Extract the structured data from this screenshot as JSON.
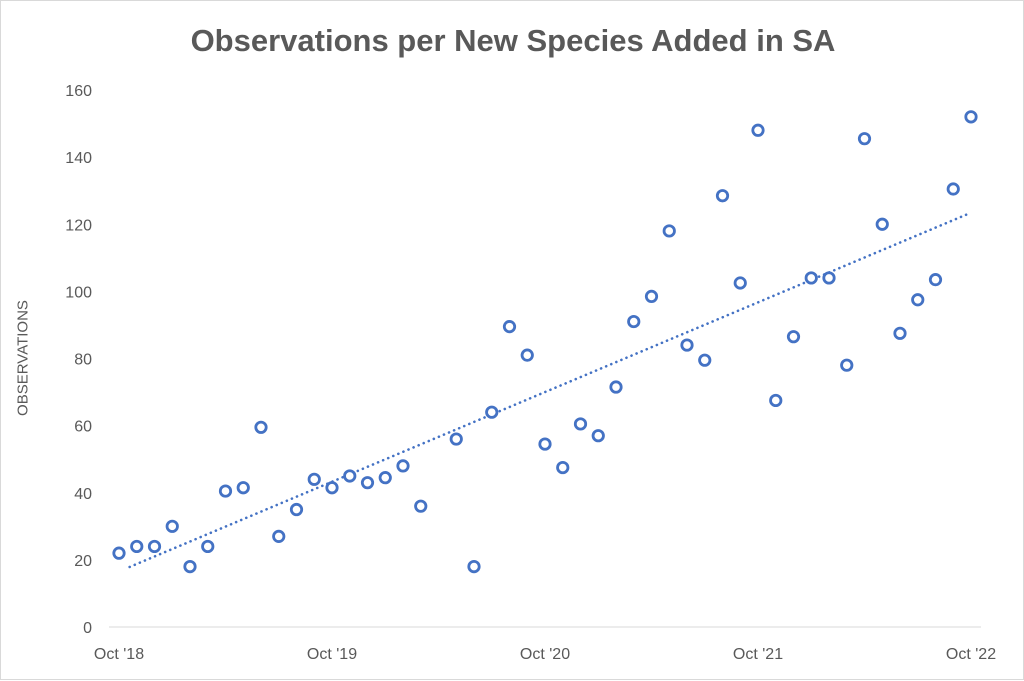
{
  "chart_data": {
    "type": "scatter",
    "title": "Observations per New Species Added in SA",
    "xlabel": "",
    "ylabel": "OBSERVATIONS",
    "ylim": [
      0,
      160
    ],
    "yticks": [
      0,
      20,
      40,
      60,
      80,
      100,
      120,
      140,
      160
    ],
    "xlim": [
      "2018-10",
      "2022-10"
    ],
    "xticks": [
      {
        "value": "2018-10",
        "label": "Oct '18"
      },
      {
        "value": "2019-10",
        "label": "Oct '19"
      },
      {
        "value": "2020-10",
        "label": "Oct '20"
      },
      {
        "value": "2021-10",
        "label": "Oct '21"
      },
      {
        "value": "2022-10",
        "label": "Oct '22"
      }
    ],
    "grid": false,
    "marker": "hollow-circle",
    "color": "#4472C4",
    "trendline": "linear-dotted",
    "points": [
      {
        "x": "2018-10",
        "y": 22
      },
      {
        "x": "2018-11",
        "y": 24
      },
      {
        "x": "2018-12",
        "y": 24
      },
      {
        "x": "2019-01",
        "y": 30
      },
      {
        "x": "2019-02",
        "y": 18
      },
      {
        "x": "2019-03",
        "y": 24
      },
      {
        "x": "2019-04",
        "y": 40.5
      },
      {
        "x": "2019-05",
        "y": 41.5
      },
      {
        "x": "2019-06",
        "y": 59.5
      },
      {
        "x": "2019-07",
        "y": 27
      },
      {
        "x": "2019-08",
        "y": 35
      },
      {
        "x": "2019-09",
        "y": 44
      },
      {
        "x": "2019-10",
        "y": 41.5
      },
      {
        "x": "2019-11",
        "y": 45
      },
      {
        "x": "2019-12",
        "y": 43
      },
      {
        "x": "2020-01",
        "y": 44.5
      },
      {
        "x": "2020-02",
        "y": 48
      },
      {
        "x": "2020-03",
        "y": 36
      },
      {
        "x": "2020-05",
        "y": 56
      },
      {
        "x": "2020-06",
        "y": 18
      },
      {
        "x": "2020-07",
        "y": 64
      },
      {
        "x": "2020-08",
        "y": 89.5
      },
      {
        "x": "2020-09",
        "y": 81
      },
      {
        "x": "2020-10",
        "y": 54.5
      },
      {
        "x": "2020-11",
        "y": 47.5
      },
      {
        "x": "2020-12",
        "y": 60.5
      },
      {
        "x": "2021-01",
        "y": 57
      },
      {
        "x": "2021-02",
        "y": 71.5
      },
      {
        "x": "2021-03",
        "y": 91
      },
      {
        "x": "2021-04",
        "y": 98.5
      },
      {
        "x": "2021-05",
        "y": 118
      },
      {
        "x": "2021-06",
        "y": 84
      },
      {
        "x": "2021-07",
        "y": 79.5
      },
      {
        "x": "2021-08",
        "y": 128.5
      },
      {
        "x": "2021-09",
        "y": 102.5
      },
      {
        "x": "2021-10",
        "y": 148
      },
      {
        "x": "2021-11",
        "y": 67.5
      },
      {
        "x": "2021-12",
        "y": 86.5
      },
      {
        "x": "2022-01",
        "y": 104
      },
      {
        "x": "2022-02",
        "y": 104
      },
      {
        "x": "2022-03",
        "y": 78
      },
      {
        "x": "2022-04",
        "y": 145.5
      },
      {
        "x": "2022-05",
        "y": 120
      },
      {
        "x": "2022-06",
        "y": 87.5
      },
      {
        "x": "2022-07",
        "y": 97.5
      },
      {
        "x": "2022-08",
        "y": 103.5
      },
      {
        "x": "2022-09",
        "y": 130.5
      },
      {
        "x": "2022-10",
        "y": 152
      }
    ]
  }
}
